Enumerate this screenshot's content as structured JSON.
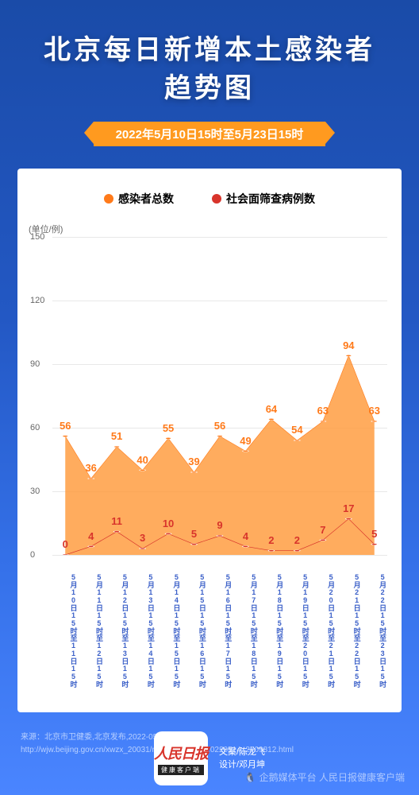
{
  "header": {
    "title_l1": "北京每日新增本土感染者",
    "title_l2": "趋势图",
    "date_range": "2022年5月10日15时至5月23日15时"
  },
  "legend": {
    "s1": {
      "label": "感染者总数",
      "color": "#ff7a1a"
    },
    "s2": {
      "label": "社会面筛查病例数",
      "color": "#d8342b"
    }
  },
  "chart": {
    "type": "line-area",
    "unit_label": "(单位/例)",
    "background_color": "#ffffff",
    "grid_color": "#e8e8e8",
    "axis_text_color": "#666666",
    "xlabel_color": "#3a5fc8",
    "ylim": [
      0,
      150
    ],
    "yticks": [
      0,
      30,
      60,
      90,
      120,
      150
    ],
    "categories": [
      "5月10日15时至11日15时",
      "5月11日15时至12日15时",
      "5月12日15时至13日15时",
      "5月13日15时至14日15时",
      "5月14日15时至15日15时",
      "5月15日15时至16日15时",
      "5月16日15时至17日15时",
      "5月17日15时至18日15时",
      "5月18日15时至19日15时",
      "5月19日15时至20日15时",
      "5月20日15时至21日15时",
      "5月21日15时至22日15时",
      "5月22日15时至23日15时"
    ],
    "series": [
      {
        "name": "s1",
        "values": [
          56,
          36,
          51,
          40,
          55,
          39,
          56,
          49,
          64,
          54,
          63,
          94,
          63
        ],
        "line_color": "#ff7a1a",
        "fill_color": "#ff9a3a",
        "fill_opacity": 0.82,
        "line_width": 2.2,
        "marker": "circle",
        "marker_size": 6,
        "label_color": "#ff7a1a",
        "label_fontsize": 13
      },
      {
        "name": "s2",
        "values": [
          0,
          4,
          11,
          3,
          10,
          5,
          9,
          4,
          2,
          2,
          7,
          17,
          5
        ],
        "line_color": "#d8342b",
        "fill_color": "none",
        "line_width": 2.5,
        "marker": "circle",
        "marker_size": 6,
        "label_color": "#d8342b",
        "label_fontsize": 13
      }
    ]
  },
  "source": {
    "l1": "来源：北京市卫健委,北京发布,2022-05-24,",
    "l2": "http://wjw.beijing.gov.cn/xwzx_20031/rdxws/202205/t20220514_2709812.html"
  },
  "footer": {
    "logo_l1": "人民日报",
    "logo_l2": "健康客户端",
    "credits_l1": "文案/陈龙飞",
    "credits_l2": "设计/邓月坤"
  },
  "watermark": "企鹅媒体平台  人民日报健康客户端"
}
